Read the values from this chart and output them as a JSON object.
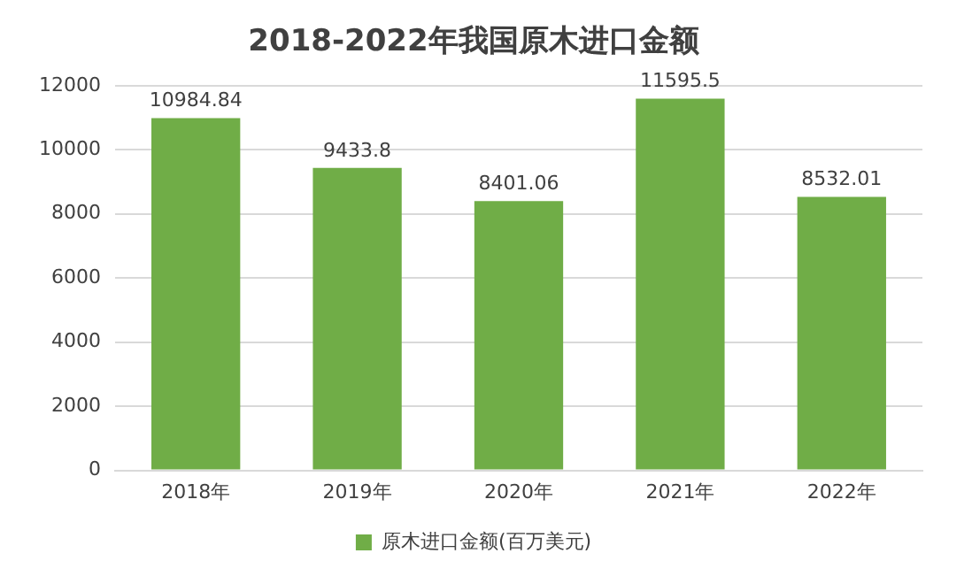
{
  "chart_data": {
    "type": "bar",
    "title": "2018-2022年我国原木进口金额",
    "categories": [
      "2018年",
      "2019年",
      "2020年",
      "2021年",
      "2022年"
    ],
    "series": [
      {
        "name": "原木进口金额(百万美元)",
        "color": "#70ad47",
        "values": [
          10984.84,
          9433.8,
          8401.06,
          11595.5,
          8532.01
        ]
      }
    ],
    "ylim": [
      0,
      12000
    ],
    "yticks": [
      0,
      2000,
      4000,
      6000,
      8000,
      10000,
      12000
    ],
    "grid": "y",
    "legend": "bottom",
    "data_labels": true
  }
}
